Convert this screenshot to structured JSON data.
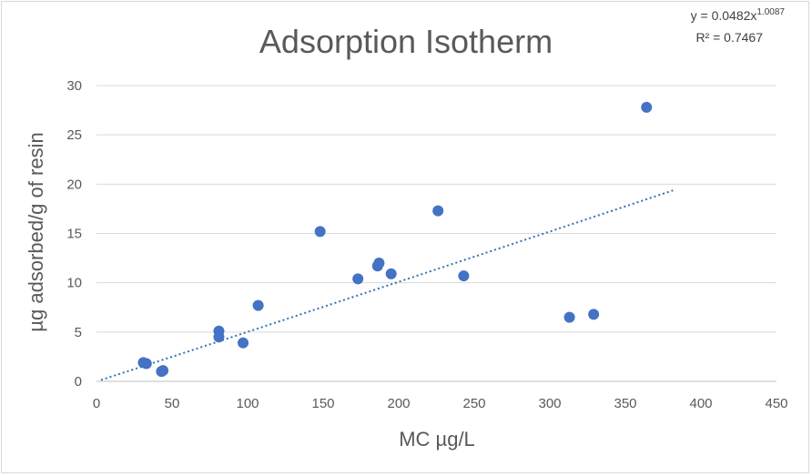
{
  "chart_data": {
    "type": "scatter",
    "title": "Adsorption Isotherm",
    "xlabel": "MC µg/L",
    "ylabel": "µg adsorbed/g of resin",
    "xlim": [
      0,
      450
    ],
    "ylim": [
      0,
      30
    ],
    "xticks": [
      0,
      50,
      100,
      150,
      200,
      250,
      300,
      350,
      400,
      450
    ],
    "yticks": [
      0,
      5,
      10,
      15,
      20,
      25,
      30
    ],
    "grid": "horizontal",
    "marker_color": "#4472c4",
    "points": [
      {
        "x": 31,
        "y": 1.9
      },
      {
        "x": 33,
        "y": 1.8
      },
      {
        "x": 43,
        "y": 1.0
      },
      {
        "x": 44,
        "y": 1.1
      },
      {
        "x": 81,
        "y": 4.5
      },
      {
        "x": 81,
        "y": 5.1
      },
      {
        "x": 97,
        "y": 3.9
      },
      {
        "x": 107,
        "y": 7.7
      },
      {
        "x": 148,
        "y": 15.2
      },
      {
        "x": 173,
        "y": 10.4
      },
      {
        "x": 186,
        "y": 11.7
      },
      {
        "x": 187,
        "y": 12.0
      },
      {
        "x": 195,
        "y": 10.9
      },
      {
        "x": 226,
        "y": 17.3
      },
      {
        "x": 243,
        "y": 10.7
      },
      {
        "x": 313,
        "y": 6.5
      },
      {
        "x": 329,
        "y": 6.8
      },
      {
        "x": 364,
        "y": 27.8
      }
    ],
    "trendline": {
      "type": "power",
      "coefficient": 0.0482,
      "exponent": 1.0087,
      "x_range": [
        3,
        382
      ],
      "color": "#2e75b6",
      "equation_prefix": "y = 0.0482x",
      "equation_exponent": "1.0087",
      "r_squared_label": "R² = 0.7467"
    }
  }
}
